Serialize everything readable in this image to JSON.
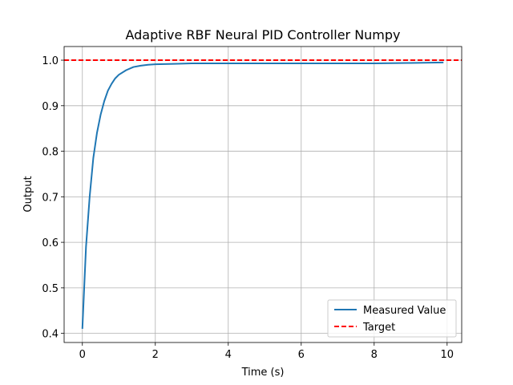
{
  "chart_data": {
    "type": "line",
    "title": "Adaptive RBF Neural PID Controller Numpy",
    "xlabel": "Time (s)",
    "ylabel": "Output",
    "xlim": [
      -0.5,
      10.4
    ],
    "ylim": [
      0.38,
      1.03
    ],
    "xticks": [
      0,
      2,
      4,
      6,
      8,
      10
    ],
    "xtick_labels": [
      "0",
      "2",
      "4",
      "6",
      "8",
      "10"
    ],
    "yticks": [
      0.4,
      0.5,
      0.6,
      0.7,
      0.8,
      0.9,
      1.0
    ],
    "ytick_labels": [
      "0.4",
      "0.5",
      "0.6",
      "0.7",
      "0.8",
      "0.9",
      "1.0"
    ],
    "grid": true,
    "legend_position": "lower-right",
    "series": [
      {
        "name": "Measured Value",
        "style": "solid",
        "color": "#1f77b4",
        "x": [
          0,
          0.1,
          0.2,
          0.3,
          0.4,
          0.5,
          0.6,
          0.7,
          0.8,
          0.9,
          1.0,
          1.2,
          1.4,
          1.6,
          1.8,
          2.0,
          2.5,
          3.0,
          4.0,
          5.0,
          6.0,
          7.0,
          8.0,
          9.0,
          9.9
        ],
        "y": [
          0.41,
          0.59,
          0.7,
          0.785,
          0.84,
          0.88,
          0.91,
          0.933,
          0.948,
          0.96,
          0.968,
          0.978,
          0.985,
          0.988,
          0.99,
          0.991,
          0.992,
          0.993,
          0.993,
          0.993,
          0.993,
          0.993,
          0.993,
          0.994,
          0.995
        ]
      },
      {
        "name": "Target",
        "style": "dashed",
        "color": "#ff0000",
        "x": [
          -0.5,
          10.4
        ],
        "y": [
          1.0,
          1.0
        ]
      }
    ]
  }
}
